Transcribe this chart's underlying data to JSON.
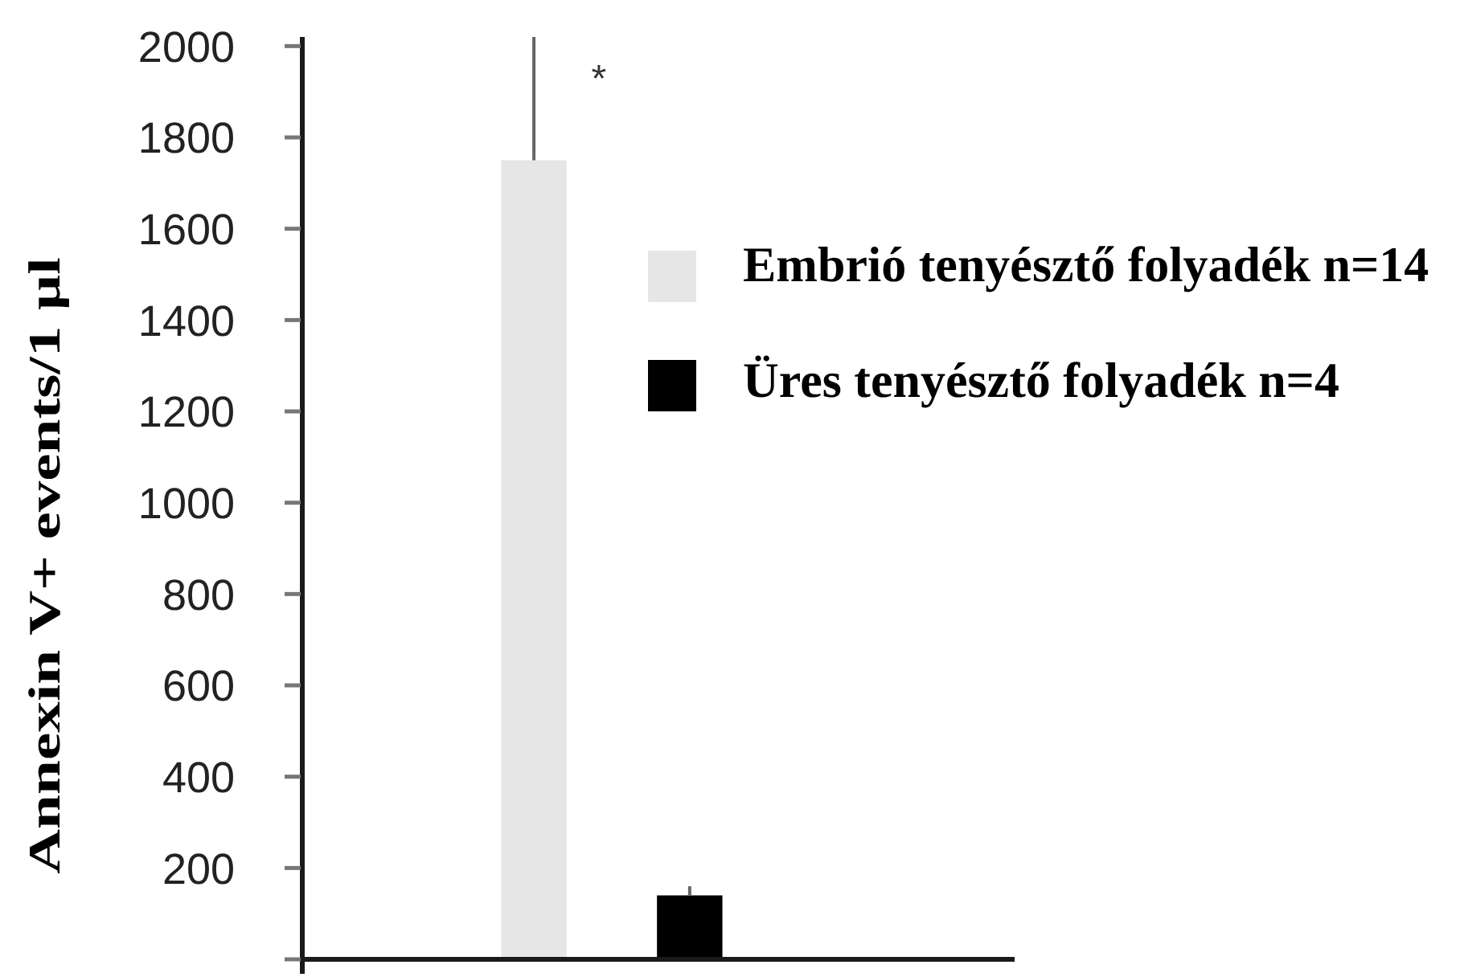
{
  "chart_data": {
    "type": "bar",
    "ylabel": "Annexin V+ events/1 µl",
    "categories": [
      null
    ],
    "series": [
      {
        "name": "Embrió tenyésztő folyadék n=14",
        "color": "#e6e6e6",
        "values": [
          1750
        ],
        "errors": [
          [
            1750,
            2020
          ]
        ]
      },
      {
        "name": "Üres tenyésztő folyadék n=4",
        "color": "#000000",
        "values": [
          140
        ],
        "errors": [
          [
            140,
            160
          ]
        ]
      }
    ],
    "ylim": [
      0,
      2020
    ],
    "yticks": [
      {
        "value": 0,
        "label": null
      },
      200,
      400,
      600,
      800,
      1000,
      1200,
      1400,
      1600,
      1800,
      2000
    ],
    "tick_labels": "y",
    "legend": "right",
    "annotations": [
      "*"
    ]
  }
}
